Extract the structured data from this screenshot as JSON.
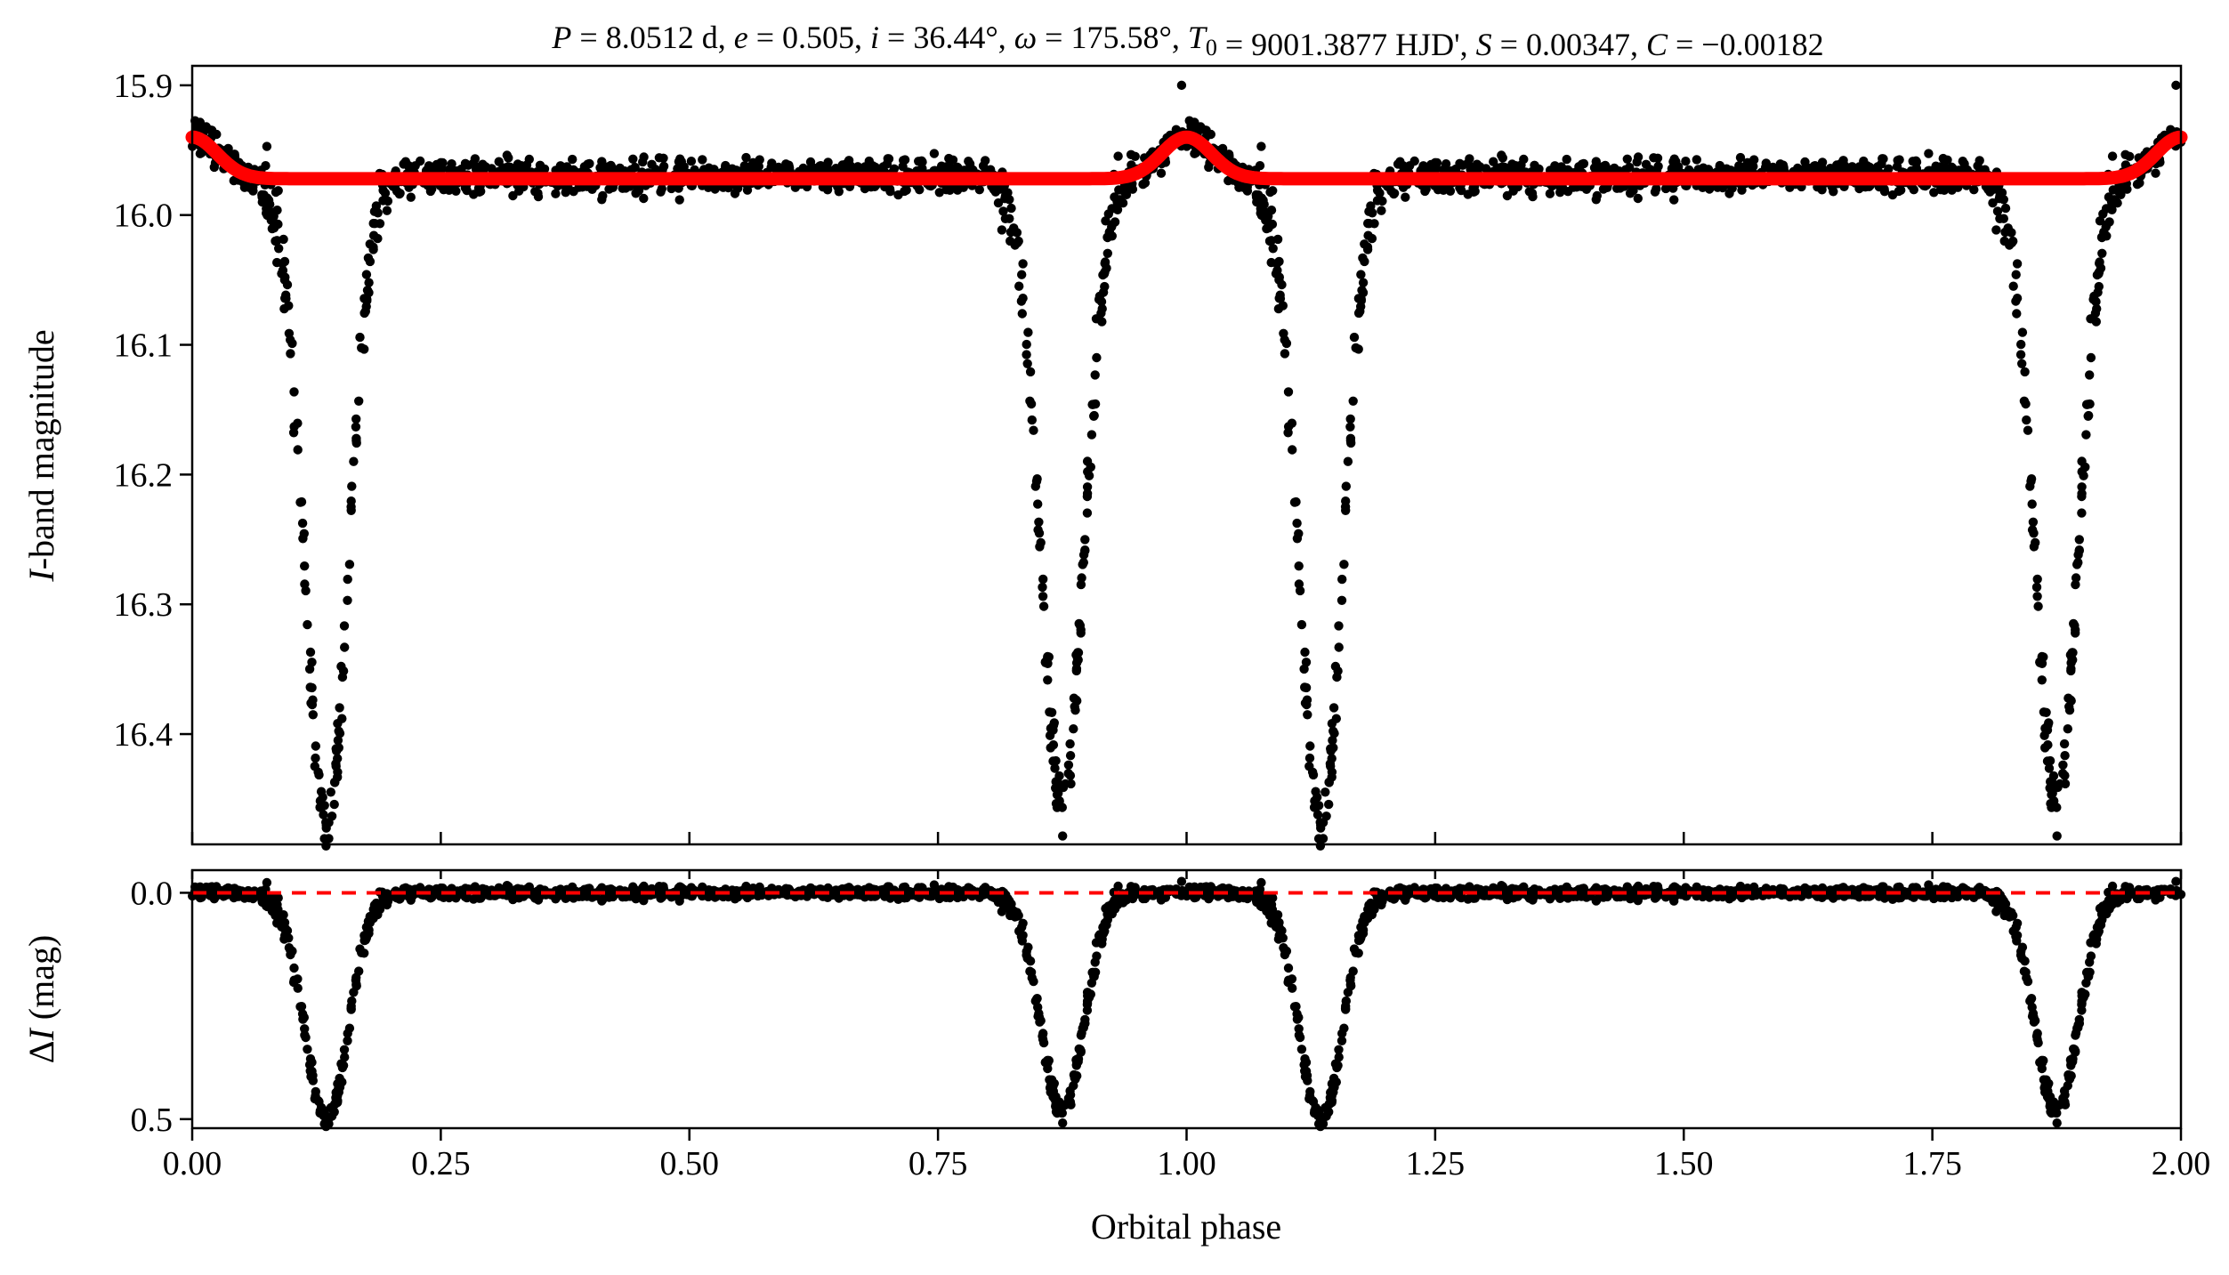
{
  "chart_data": [
    {
      "type": "scatter",
      "panel": "top",
      "title": "P = 8.0512 d, e = 0.505, i = 36.44°, ω = 175.58°, T0 = 9001.3877 HJD', S = 0.00347, C = −0.00182",
      "title_parts": {
        "P": "8.0512",
        "e": "0.505",
        "i": "36.44",
        "omega": "175.58",
        "T0": "9001.3877",
        "S": "0.00347",
        "C": "−0.00182"
      },
      "xlabel": "Orbital phase",
      "ylabel_italic": "I",
      "ylabel_rest": "-band magnitude",
      "xlim": [
        0.0,
        2.0
      ],
      "ylim": [
        16.485,
        15.885
      ],
      "y_inverted": true,
      "xticks": [
        0.0,
        0.25,
        0.5,
        0.75,
        1.0,
        1.25,
        1.5,
        1.75,
        2.0
      ],
      "yticks": [
        15.9,
        16.0,
        16.1,
        16.2,
        16.3,
        16.4
      ],
      "ytick_labels": [
        "15.9",
        "16.0",
        "16.1",
        "16.2",
        "16.3",
        "16.4"
      ],
      "series": [
        {
          "kind": "scatter",
          "color": "#000000",
          "model": {
            "baseline": 15.97,
            "eclipses": [
              {
                "phase": 0.135,
                "depth": 0.5,
                "width": 0.022
              },
              {
                "phase": 0.875,
                "depth": 0.48,
                "width": 0.022
              }
            ],
            "bump": {
              "phase": 0.0,
              "height": 0.03,
              "width": 0.025
            },
            "scatter": 0.006
          },
          "outliers": [
            {
              "x": 0.995,
              "y": 15.9
            },
            {
              "x": 1.995,
              "y": 15.9
            }
          ]
        },
        {
          "kind": "line",
          "color": "#ff0000",
          "model": {
            "baseline": 15.972,
            "bump": {
              "phase": 0.0,
              "height": 0.032,
              "width": 0.025
            }
          }
        }
      ]
    },
    {
      "type": "scatter",
      "panel": "bottom",
      "xlabel": "Orbital phase",
      "ylabel_prefix": "Δ",
      "ylabel_italic": "I",
      "ylabel_rest": " (mag)",
      "xlim": [
        0.0,
        2.0
      ],
      "ylim": [
        0.52,
        -0.05
      ],
      "y_inverted": true,
      "xticks": [
        0.0,
        0.25,
        0.5,
        0.75,
        1.0,
        1.25,
        1.5,
        1.75,
        2.0
      ],
      "xtick_labels": [
        "0.00",
        "0.25",
        "0.50",
        "0.75",
        "1.00",
        "1.25",
        "1.50",
        "1.75",
        "2.00"
      ],
      "yticks": [
        0.0,
        0.5
      ],
      "ytick_labels": [
        "0.0",
        "0.5"
      ],
      "series": [
        {
          "kind": "scatter",
          "color": "#000000",
          "model": {
            "baseline": 0.0,
            "eclipses": [
              {
                "phase": 0.135,
                "depth": 0.5,
                "width": 0.022
              },
              {
                "phase": 0.875,
                "depth": 0.48,
                "width": 0.022
              }
            ],
            "scatter": 0.006
          }
        },
        {
          "kind": "reference-line",
          "color": "#ff0000",
          "style": "dashed",
          "y": 0.0
        }
      ]
    }
  ]
}
